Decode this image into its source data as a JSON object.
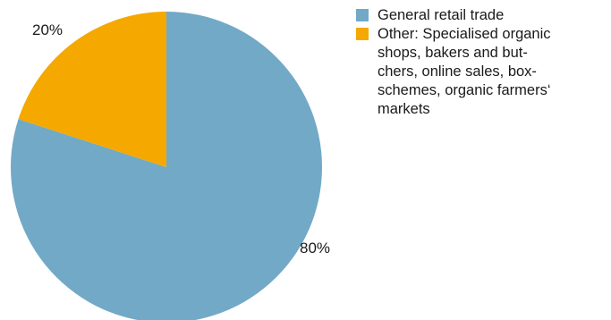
{
  "chart_data": {
    "type": "pie",
    "title": "",
    "slices": [
      {
        "label": "General retail trade",
        "value": 80,
        "display": "80%",
        "color": "#72a9c6"
      },
      {
        "label": "Other: Specialised organic\nshops, bakers and but-\nchers, online sales, box-\nschemes, organic farmers‘\nmarkets",
        "value": 20,
        "display": "20%",
        "color": "#f5a800"
      }
    ],
    "legend_position": "top-right",
    "start_angle_deg": 0,
    "direction": "counterclockwise"
  }
}
